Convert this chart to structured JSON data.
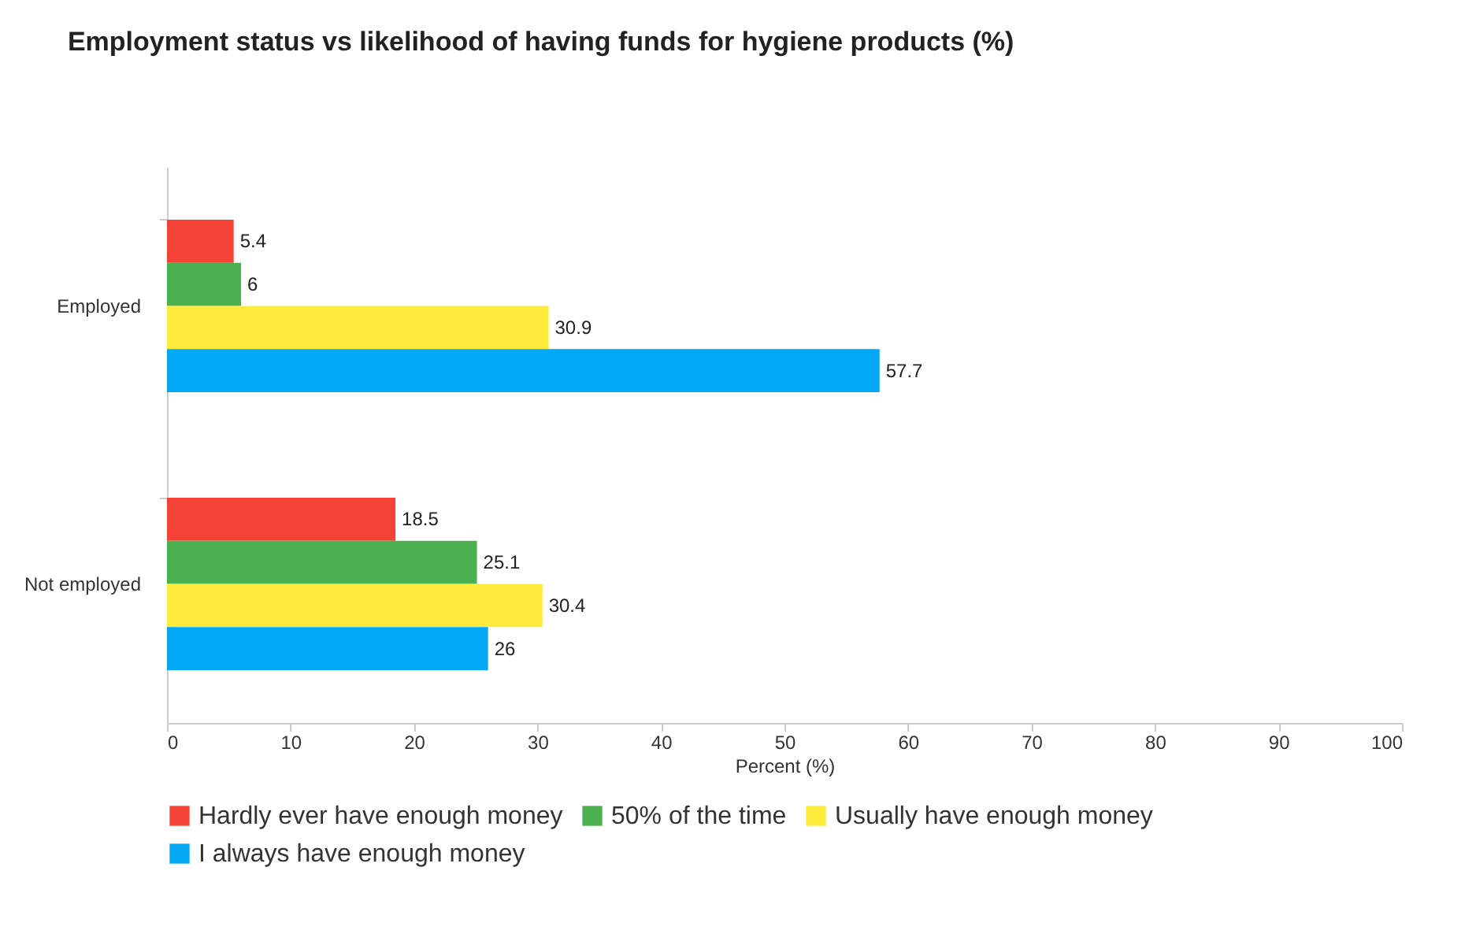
{
  "chart_data": {
    "type": "bar",
    "title": "Employment status vs likelihood of having funds for hygiene products (%)",
    "xlabel": "Percent (%)",
    "orientation": "horizontal",
    "categories": [
      "Employed",
      "Not employed"
    ],
    "series": [
      {
        "name": "Hardly ever have enough money",
        "color": "#f44336",
        "values": [
          5.4,
          18.5
        ]
      },
      {
        "name": "50% of the time",
        "color": "#4caf50",
        "values": [
          6,
          25.1
        ]
      },
      {
        "name": "Usually have enough money",
        "color": "#ffeb3b",
        "values": [
          30.9,
          30.4
        ]
      },
      {
        "name": "I always have enough money",
        "color": "#03a9f4",
        "values": [
          57.7,
          26
        ]
      }
    ],
    "xlim": [
      0,
      100
    ],
    "xticks": [
      0,
      10,
      20,
      30,
      40,
      50,
      60,
      70,
      80,
      90,
      100
    ],
    "data_labels": true,
    "legend": "bottom",
    "grid": false
  }
}
